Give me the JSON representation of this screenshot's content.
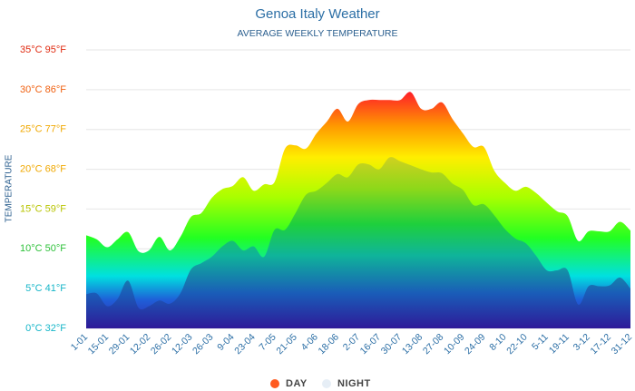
{
  "chart_data": {
    "type": "area",
    "title": "Genoa Italy Weather",
    "subtitle": "AVERAGE WEEKLY TEMPERATURE",
    "y_label": "TEMPERATURE",
    "categories": [
      "1-01",
      null,
      "15-01",
      null,
      "29-01",
      null,
      "12-02",
      null,
      "26-02",
      null,
      "12-03",
      null,
      "26-03",
      null,
      "9-04",
      null,
      "23-04",
      null,
      "7-05",
      null,
      "21-05",
      null,
      "4-06",
      null,
      "18-06",
      null,
      "2-07",
      null,
      "16-07",
      null,
      "30-07",
      null,
      "13-08",
      null,
      "27-08",
      null,
      "10-09",
      null,
      "24-09",
      null,
      "8-10",
      null,
      "22-10",
      null,
      "5-11",
      null,
      "19-11",
      null,
      "3-12",
      null,
      "17-12",
      null,
      "31-12"
    ],
    "series": [
      {
        "name": "DAY",
        "color": "#ff5a1f",
        "values": [
          11.7,
          11.2,
          10.2,
          11.2,
          12.1,
          9.7,
          9.8,
          11.5,
          9.8,
          11.5,
          14.0,
          14.5,
          16.4,
          17.5,
          17.9,
          19.0,
          17.3,
          18.1,
          18.4,
          22.6,
          23.0,
          22.6,
          24.5,
          26.0,
          27.6,
          26.0,
          28.2,
          28.7,
          28.7,
          28.7,
          28.7,
          29.7,
          27.6,
          27.6,
          28.4,
          26.3,
          24.5,
          22.8,
          22.8,
          19.8,
          18.3,
          17.3,
          17.8,
          17.0,
          15.8,
          14.7,
          14.1,
          11.0,
          12.2,
          12.2,
          12.2,
          13.4,
          12.3
        ]
      },
      {
        "name": "NIGHT",
        "color": "#e6eef6",
        "values": [
          4.3,
          4.4,
          2.8,
          3.7,
          6.0,
          2.6,
          2.8,
          3.5,
          3.1,
          4.4,
          7.4,
          8.2,
          9.0,
          10.3,
          11.0,
          9.8,
          10.3,
          9.0,
          12.4,
          12.4,
          14.5,
          16.8,
          17.3,
          18.3,
          19.4,
          19.0,
          20.6,
          20.6,
          20.0,
          21.5,
          21.0,
          20.5,
          20.0,
          19.6,
          19.5,
          18.2,
          17.4,
          15.5,
          15.6,
          14.2,
          12.5,
          11.3,
          10.7,
          9.1,
          7.3,
          7.3,
          7.3,
          3.0,
          5.3,
          5.3,
          5.4,
          6.4,
          5.0
        ]
      }
    ],
    "ylim": [
      0,
      35
    ],
    "yticks": [
      {
        "value": 0,
        "label": "0°C 32°F"
      },
      {
        "value": 5,
        "label": "5°C 41°F"
      },
      {
        "value": 10,
        "label": "10°C 50°F"
      },
      {
        "value": 15,
        "label": "15°C 59°F"
      },
      {
        "value": 20,
        "label": "20°C 68°F"
      },
      {
        "value": 25,
        "label": "25°C 77°F"
      },
      {
        "value": 30,
        "label": "30°C 86°F"
      },
      {
        "value": 35,
        "label": "35°C 95°F"
      }
    ],
    "grid": true
  }
}
